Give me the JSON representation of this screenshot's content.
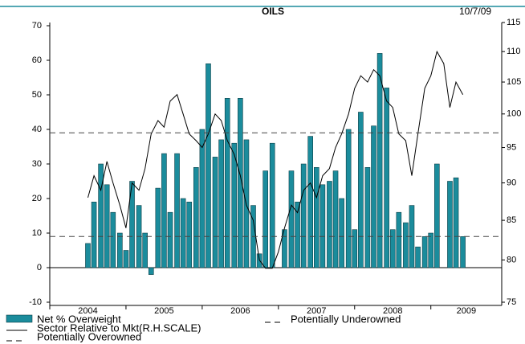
{
  "chart_data": {
    "type": "bar",
    "title": "OILS",
    "date": "10/7/09",
    "x": [
      2004.5,
      2004.58,
      2004.67,
      2004.75,
      2004.83,
      2004.92,
      2005.0,
      2005.08,
      2005.17,
      2005.25,
      2005.33,
      2005.42,
      2005.5,
      2005.58,
      2005.67,
      2005.75,
      2005.83,
      2005.92,
      2006.0,
      2006.08,
      2006.17,
      2006.25,
      2006.33,
      2006.42,
      2006.5,
      2006.58,
      2006.67,
      2006.75,
      2006.83,
      2006.92,
      2007.0,
      2007.08,
      2007.17,
      2007.25,
      2007.33,
      2007.42,
      2007.5,
      2007.58,
      2007.67,
      2007.75,
      2007.83,
      2007.92,
      2008.0,
      2008.08,
      2008.17,
      2008.25,
      2008.33,
      2008.42,
      2008.5,
      2008.58,
      2008.67,
      2008.75,
      2008.83,
      2008.92,
      2009.0,
      2009.08,
      2009.17,
      2009.25,
      2009.33,
      2009.42
    ],
    "series": [
      {
        "name": "Net % Overweight",
        "color": "#1b8c9c",
        "type": "bar",
        "values": [
          7,
          19,
          30,
          24,
          16,
          10,
          5,
          25,
          18,
          10,
          -2,
          23,
          33,
          16,
          33,
          20,
          19,
          29,
          40,
          59,
          32,
          37,
          49,
          36,
          49,
          37,
          18,
          4,
          28,
          36,
          null,
          11,
          28,
          19,
          30,
          38,
          29,
          24,
          25,
          28,
          20,
          40,
          11,
          45,
          29,
          41,
          62,
          52,
          11,
          16,
          13,
          18,
          6,
          9,
          10,
          30,
          null,
          25,
          26,
          9
        ]
      },
      {
        "name": "Sector Relative to Mkt(R.H.SCALE)",
        "color": "#000000",
        "type": "line",
        "axis": "y2",
        "values": [
          88,
          91,
          89,
          93,
          90,
          87,
          84,
          90,
          89,
          92,
          97,
          99,
          98,
          102,
          103,
          100,
          97,
          96,
          95,
          97,
          100,
          99,
          96,
          94,
          91,
          87,
          85,
          80,
          79,
          79,
          81,
          84,
          87,
          86,
          89,
          90,
          88,
          91,
          92,
          95,
          97,
          100,
          104,
          106,
          105,
          107,
          106,
          102,
          101,
          97,
          96,
          91,
          97,
          104,
          106,
          110,
          108,
          101,
          105,
          103
        ]
      }
    ],
    "reference_lines": [
      {
        "name": "Potentially Underowned",
        "value": 9
      },
      {
        "name": "Potentially Overowned",
        "value": 39
      }
    ],
    "xlim": [
      2004,
      2009.93
    ],
    "xticks": [
      2004,
      2005,
      2006,
      2007,
      2008,
      2009
    ],
    "ylim": [
      -10,
      70
    ],
    "yticks": [
      -10,
      0,
      10,
      20,
      30,
      40,
      50,
      60,
      70
    ],
    "y2lim": [
      75,
      115
    ],
    "y2ticks": [
      75,
      80,
      85,
      90,
      95,
      100,
      105,
      110,
      115
    ],
    "y2scale": "log"
  }
}
